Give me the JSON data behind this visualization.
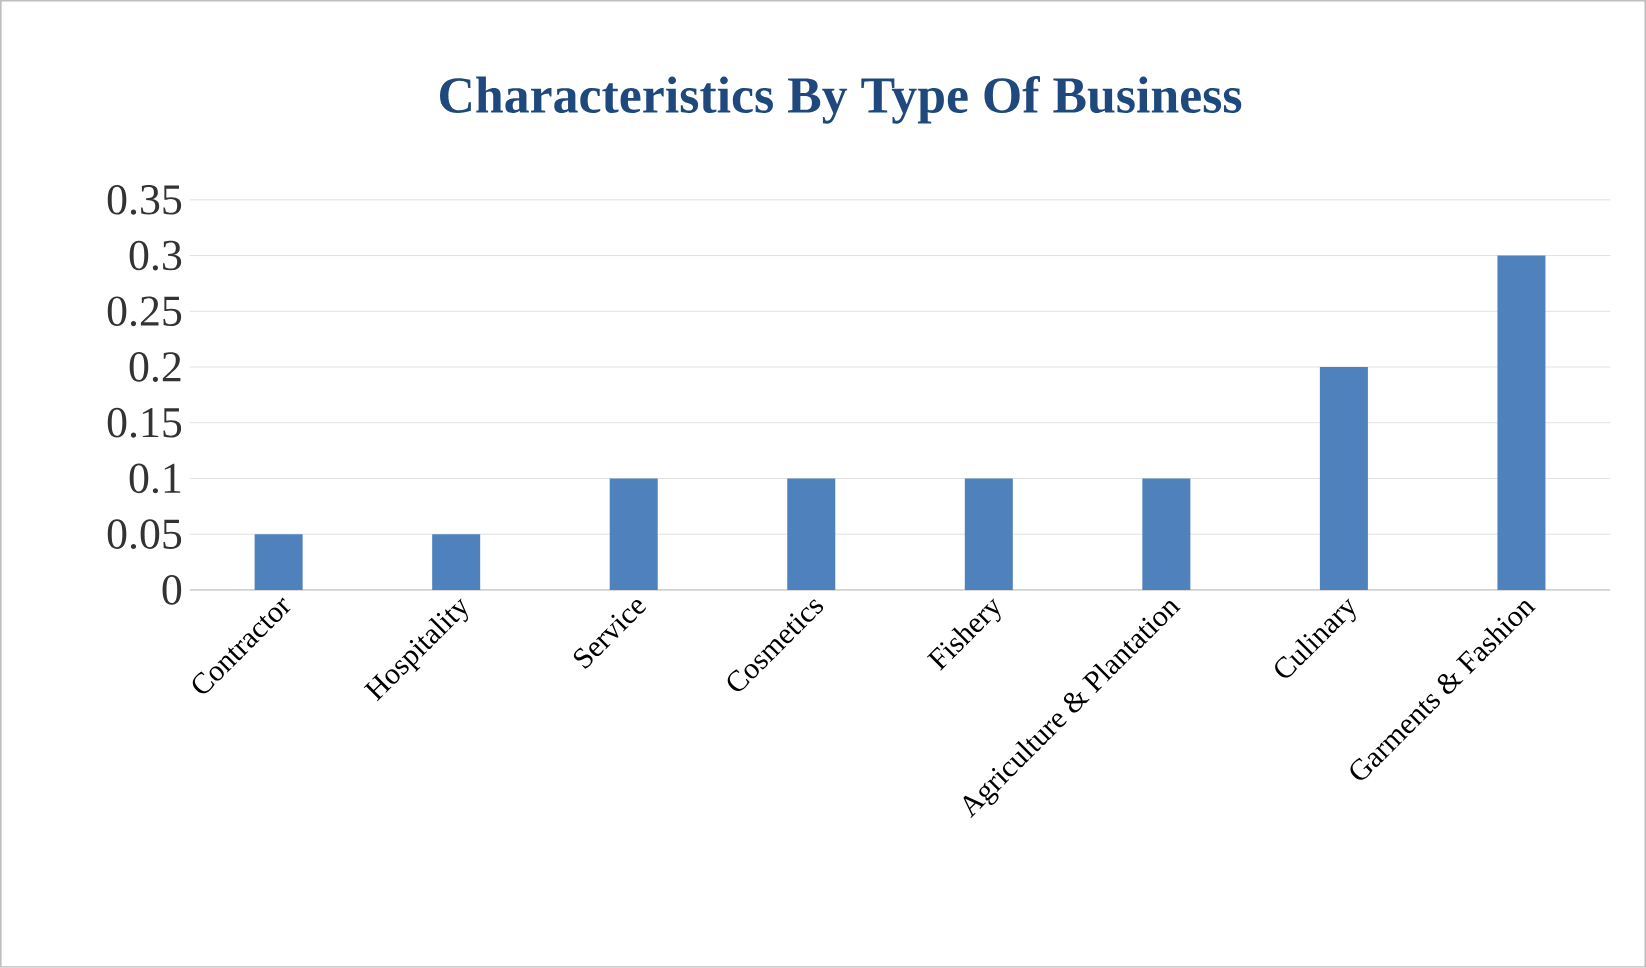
{
  "chart_data": {
    "type": "bar",
    "title": "Characteristics By Type Of Business",
    "categories": [
      "Contractor",
      "Hospitality",
      "Service",
      "Cosmetics",
      "Fishery",
      "Agriculture & Plantation",
      "Culinary",
      "Garments & Fashion"
    ],
    "values": [
      0.05,
      0.05,
      0.1,
      0.1,
      0.1,
      0.1,
      0.2,
      0.3
    ],
    "color": "#4f81bd",
    "ylim": [
      0,
      0.35
    ],
    "yticks": [
      0,
      0.05,
      0.1,
      0.15,
      0.2,
      0.25,
      0.3,
      0.35
    ],
    "grid": "y"
  }
}
